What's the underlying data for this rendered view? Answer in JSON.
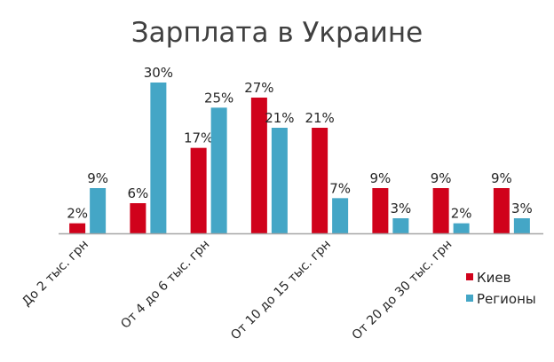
{
  "chart_data": {
    "type": "bar",
    "title": "Зарплата в Украине",
    "categories": [
      "До 2 тыс. грн",
      "",
      "От 4 до 6 тыс. грн",
      "",
      "От 10 до 15 тыс. грн",
      "",
      "От 20 до 30 тыс. грн",
      ""
    ],
    "series": [
      {
        "name": "Киев",
        "color": "#d0021b",
        "values": [
          2,
          6,
          17,
          27,
          21,
          9,
          9,
          9
        ]
      },
      {
        "name": "Регионы",
        "color": "#44a6c6",
        "values": [
          9,
          30,
          25,
          21,
          7,
          3,
          2,
          3
        ]
      }
    ],
    "value_suffix": "%",
    "ylim": [
      0,
      30
    ],
    "grid": false,
    "legend": "overlapping plot area, middle"
  }
}
